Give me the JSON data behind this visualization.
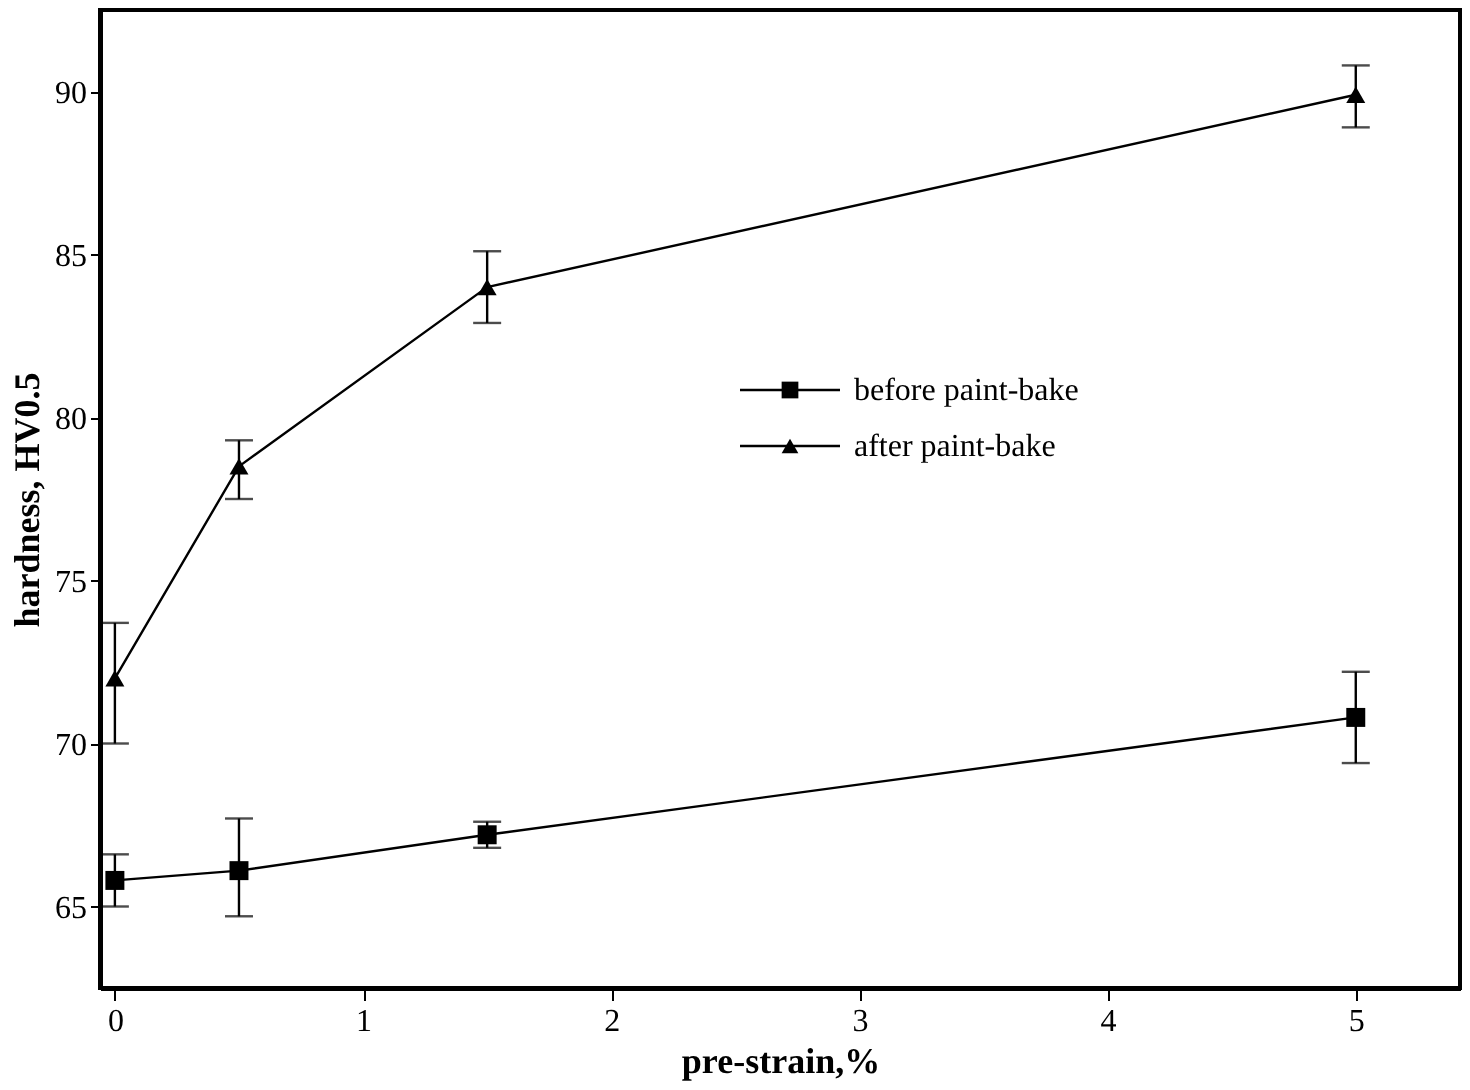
{
  "chart_data": {
    "type": "line",
    "xlabel": "pre-strain,%",
    "ylabel": "hardness, HV0.5",
    "x": [
      0,
      0.5,
      1.5,
      5
    ],
    "series": [
      {
        "name": "before paint-bake",
        "color": "#000000",
        "marker": "square",
        "values": [
          65.8,
          66.1,
          67.2,
          70.8
        ],
        "errors": [
          [
            65.0,
            66.6
          ],
          [
            64.7,
            67.7
          ],
          [
            66.8,
            67.6
          ],
          [
            69.4,
            72.2
          ]
        ]
      },
      {
        "name": "after paint-bake",
        "color": "#000000",
        "marker": "triangle",
        "values": [
          72.0,
          78.5,
          84.0,
          89.9
        ],
        "errors": [
          [
            70.0,
            73.7
          ],
          [
            77.5,
            79.3
          ],
          [
            82.9,
            85.1
          ],
          [
            88.9,
            90.8
          ]
        ]
      }
    ],
    "xlim": [
      -0.06,
      5.42
    ],
    "xticks": [
      0,
      1,
      2,
      3,
      4,
      5
    ],
    "ylim": [
      62.5,
      92.5
    ],
    "yticks": [
      65,
      70,
      75,
      80,
      85,
      90
    ],
    "grid": false,
    "legend": "right",
    "line_style": "solid"
  }
}
